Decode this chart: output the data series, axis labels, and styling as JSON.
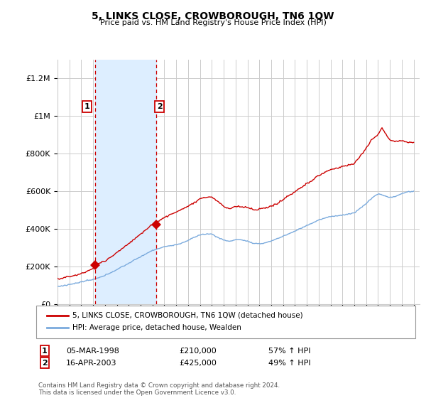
{
  "title": "5, LINKS CLOSE, CROWBOROUGH, TN6 1QW",
  "subtitle": "Price paid vs. HM Land Registry's House Price Index (HPI)",
  "legend_line1": "5, LINKS CLOSE, CROWBOROUGH, TN6 1QW (detached house)",
  "legend_line2": "HPI: Average price, detached house, Wealden",
  "sale1_label": "1",
  "sale1_date": "05-MAR-1998",
  "sale1_price": "£210,000",
  "sale1_hpi": "57% ↑ HPI",
  "sale1_year": 1998.17,
  "sale1_value": 210000,
  "sale2_label": "2",
  "sale2_date": "16-APR-2003",
  "sale2_price": "£425,000",
  "sale2_hpi": "49% ↑ HPI",
  "sale2_year": 2003.29,
  "sale2_value": 425000,
  "hpi_color": "#7aaadd",
  "price_color": "#cc0000",
  "shading_color": "#ddeeff",
  "background_color": "#ffffff",
  "grid_color": "#cccccc",
  "ylim": [
    0,
    1300000
  ],
  "xlim_start": 1995.0,
  "xlim_end": 2025.5,
  "footer": "Contains HM Land Registry data © Crown copyright and database right 2024.\nThis data is licensed under the Open Government Licence v3.0.",
  "yticks": [
    0,
    200000,
    400000,
    600000,
    800000,
    1000000,
    1200000
  ],
  "ytick_labels": [
    "£0",
    "£200K",
    "£400K",
    "£600K",
    "£800K",
    "£1M",
    "£1.2M"
  ],
  "xticks": [
    1995,
    1996,
    1997,
    1998,
    1999,
    2000,
    2001,
    2002,
    2003,
    2004,
    2005,
    2006,
    2007,
    2008,
    2009,
    2010,
    2011,
    2012,
    2013,
    2014,
    2015,
    2016,
    2017,
    2018,
    2019,
    2020,
    2021,
    2022,
    2023,
    2024,
    2025
  ]
}
